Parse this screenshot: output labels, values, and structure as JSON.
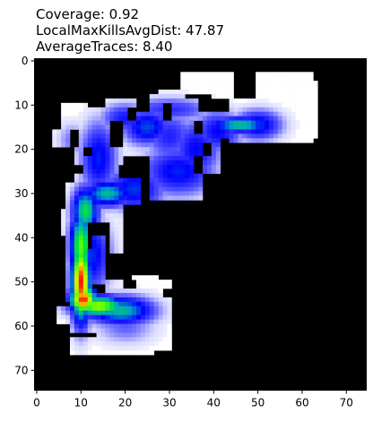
{
  "title_lines": [
    "Coverage: 0.92",
    "LocalMaxKillsAvgDist: 47.87",
    "AverageTraces: 8.40"
  ],
  "chart_data": {
    "type": "heatmap",
    "description_colormap": "jet-like (blue-green-yellow-red) over white free space, black obstacles",
    "x_ticks": [
      0,
      10,
      20,
      30,
      40,
      50,
      60,
      70
    ],
    "y_ticks": [
      0,
      10,
      20,
      30,
      40,
      50,
      60,
      70
    ],
    "xlim": [
      -0.5,
      74.5
    ],
    "ylim": [
      74.5,
      -0.5
    ],
    "grid": false,
    "colors": {
      "obstacle": "#000000",
      "free": "#ffffff",
      "low": "#0000ff",
      "mid": "#00ff00",
      "high_mid": "#ffff00",
      "high": "#ff0000"
    },
    "free_regions": [
      {
        "x0": 6,
        "x1": 10,
        "y0": 34,
        "y1": 40
      },
      {
        "x0": 7,
        "x1": 13,
        "y0": 28,
        "y1": 55
      },
      {
        "x0": 9,
        "x1": 13,
        "y0": 20,
        "y1": 28
      },
      {
        "x0": 10,
        "x1": 17,
        "y0": 11,
        "y1": 21
      },
      {
        "x0": 13,
        "x1": 20,
        "y0": 20,
        "y1": 37
      },
      {
        "x0": 20,
        "x1": 24,
        "y0": 27,
        "y1": 33
      },
      {
        "x0": 16,
        "x1": 23,
        "y0": 9,
        "y1": 14
      },
      {
        "x0": 22,
        "x1": 26,
        "y0": 12,
        "y1": 22
      },
      {
        "x0": 26,
        "x1": 33,
        "y0": 8,
        "y1": 14
      },
      {
        "x0": 20,
        "x1": 36,
        "y0": 14,
        "y1": 22
      },
      {
        "x0": 26,
        "x1": 38,
        "y0": 20,
        "y1": 32
      },
      {
        "x0": 31,
        "x1": 37,
        "y0": 9,
        "y1": 20
      },
      {
        "x0": 34,
        "x1": 42,
        "y0": 15,
        "y1": 26
      },
      {
        "x0": 36,
        "x1": 47,
        "y0": 12,
        "y1": 18
      },
      {
        "x0": 44,
        "x1": 56,
        "y0": 9,
        "y1": 19
      },
      {
        "x0": 50,
        "x1": 63,
        "y0": 3,
        "y1": 19
      },
      {
        "x0": 54,
        "x1": 64,
        "y0": 5,
        "y1": 18
      },
      {
        "x0": 4,
        "x1": 8,
        "y0": 16,
        "y1": 20
      },
      {
        "x0": 6,
        "x1": 12,
        "y0": 10,
        "y1": 16
      },
      {
        "x0": 13,
        "x1": 16,
        "y0": 40,
        "y1": 51
      },
      {
        "x0": 8,
        "x1": 14,
        "y0": 52,
        "y1": 62
      },
      {
        "x0": 5,
        "x1": 9,
        "y0": 56,
        "y1": 60
      },
      {
        "x0": 14,
        "x1": 27,
        "y0": 50,
        "y1": 63
      },
      {
        "x0": 8,
        "x1": 27,
        "y0": 63,
        "y1": 67
      },
      {
        "x0": 22,
        "x1": 28,
        "y0": 49,
        "y1": 63
      },
      {
        "x0": 27,
        "x1": 31,
        "y0": 50,
        "y1": 66
      },
      {
        "x0": 17,
        "x1": 20,
        "y0": 36,
        "y1": 44
      },
      {
        "x0": 40,
        "x1": 45,
        "y0": 3,
        "y1": 9
      },
      {
        "x0": 33,
        "x1": 41,
        "y0": 3,
        "y1": 8
      },
      {
        "x0": 28,
        "x1": 34,
        "y0": 7,
        "y1": 12
      }
    ],
    "obstacle_patches": [
      {
        "x0": 19,
        "x1": 21,
        "y0": 24,
        "y1": 27
      },
      {
        "x0": 24,
        "x1": 26,
        "y0": 22,
        "y1": 25
      },
      {
        "x0": 36,
        "x1": 38,
        "y0": 22,
        "y1": 26
      },
      {
        "x0": 38,
        "x1": 40,
        "y0": 19,
        "y1": 22
      },
      {
        "x0": 29,
        "x1": 31,
        "y0": 10,
        "y1": 14
      },
      {
        "x0": 21,
        "x1": 23,
        "y0": 11,
        "y1": 14
      },
      {
        "x0": 11,
        "x1": 13,
        "y0": 20,
        "y1": 22
      },
      {
        "x0": 12,
        "x1": 13,
        "y0": 37,
        "y1": 43
      },
      {
        "x0": 14,
        "x1": 16,
        "y0": 51,
        "y1": 53
      },
      {
        "x0": 20,
        "x1": 23,
        "y0": 50,
        "y1": 52
      },
      {
        "x0": 29,
        "x1": 33,
        "y0": 52,
        "y1": 54
      },
      {
        "x0": 36,
        "x1": 38,
        "y0": 14,
        "y1": 17
      },
      {
        "x0": 24,
        "x1": 28,
        "y0": 32,
        "y1": 35
      },
      {
        "x0": 9,
        "x1": 11,
        "y0": 24,
        "y1": 26
      }
    ],
    "heat_blobs": [
      {
        "x": 10,
        "y": 50,
        "rx": 1.6,
        "ry": 6.5,
        "value": 1.0
      },
      {
        "x": 10.5,
        "y": 54,
        "rx": 2.2,
        "ry": 2.4,
        "value": 1.0
      },
      {
        "x": 10,
        "y": 42,
        "rx": 1.8,
        "ry": 6.0,
        "value": 0.72
      },
      {
        "x": 11,
        "y": 34,
        "rx": 2.2,
        "ry": 4.0,
        "value": 0.62
      },
      {
        "x": 14,
        "y": 55.5,
        "rx": 4.5,
        "ry": 1.8,
        "value": 0.78
      },
      {
        "x": 19,
        "y": 56.5,
        "rx": 5.5,
        "ry": 2.4,
        "value": 0.55
      },
      {
        "x": 16,
        "y": 30,
        "rx": 4.0,
        "ry": 2.2,
        "value": 0.55
      },
      {
        "x": 22,
        "y": 29,
        "rx": 5.0,
        "ry": 3.5,
        "value": 0.4
      },
      {
        "x": 14,
        "y": 22,
        "rx": 3.0,
        "ry": 6.0,
        "value": 0.38
      },
      {
        "x": 12,
        "y": 44,
        "rx": 3.5,
        "ry": 6.0,
        "value": 0.4
      },
      {
        "x": 32,
        "y": 25,
        "rx": 6.0,
        "ry": 4.0,
        "value": 0.38
      },
      {
        "x": 36,
        "y": 20,
        "rx": 4.0,
        "ry": 5.0,
        "value": 0.35
      },
      {
        "x": 25,
        "y": 15,
        "rx": 4.0,
        "ry": 3.0,
        "value": 0.42
      },
      {
        "x": 20,
        "y": 13,
        "rx": 4.0,
        "ry": 2.5,
        "value": 0.32
      },
      {
        "x": 30,
        "y": 17,
        "rx": 4.0,
        "ry": 4.0,
        "value": 0.3
      },
      {
        "x": 46,
        "y": 14.5,
        "rx": 5.0,
        "ry": 1.3,
        "value": 0.58
      },
      {
        "x": 50,
        "y": 14.5,
        "rx": 4.0,
        "ry": 2.5,
        "value": 0.4
      },
      {
        "x": 41,
        "y": 16,
        "rx": 4.0,
        "ry": 3.5,
        "value": 0.35
      },
      {
        "x": 30,
        "y": 11,
        "rx": 7.0,
        "ry": 2.0,
        "value": 0.28
      },
      {
        "x": 20,
        "y": 60,
        "rx": 5.0,
        "ry": 3.0,
        "value": 0.2
      },
      {
        "x": 8,
        "y": 18,
        "rx": 2.5,
        "ry": 3.0,
        "value": 0.18
      },
      {
        "x": 27,
        "y": 36,
        "rx": 5.0,
        "ry": 4.0,
        "value": 0.18
      }
    ]
  }
}
